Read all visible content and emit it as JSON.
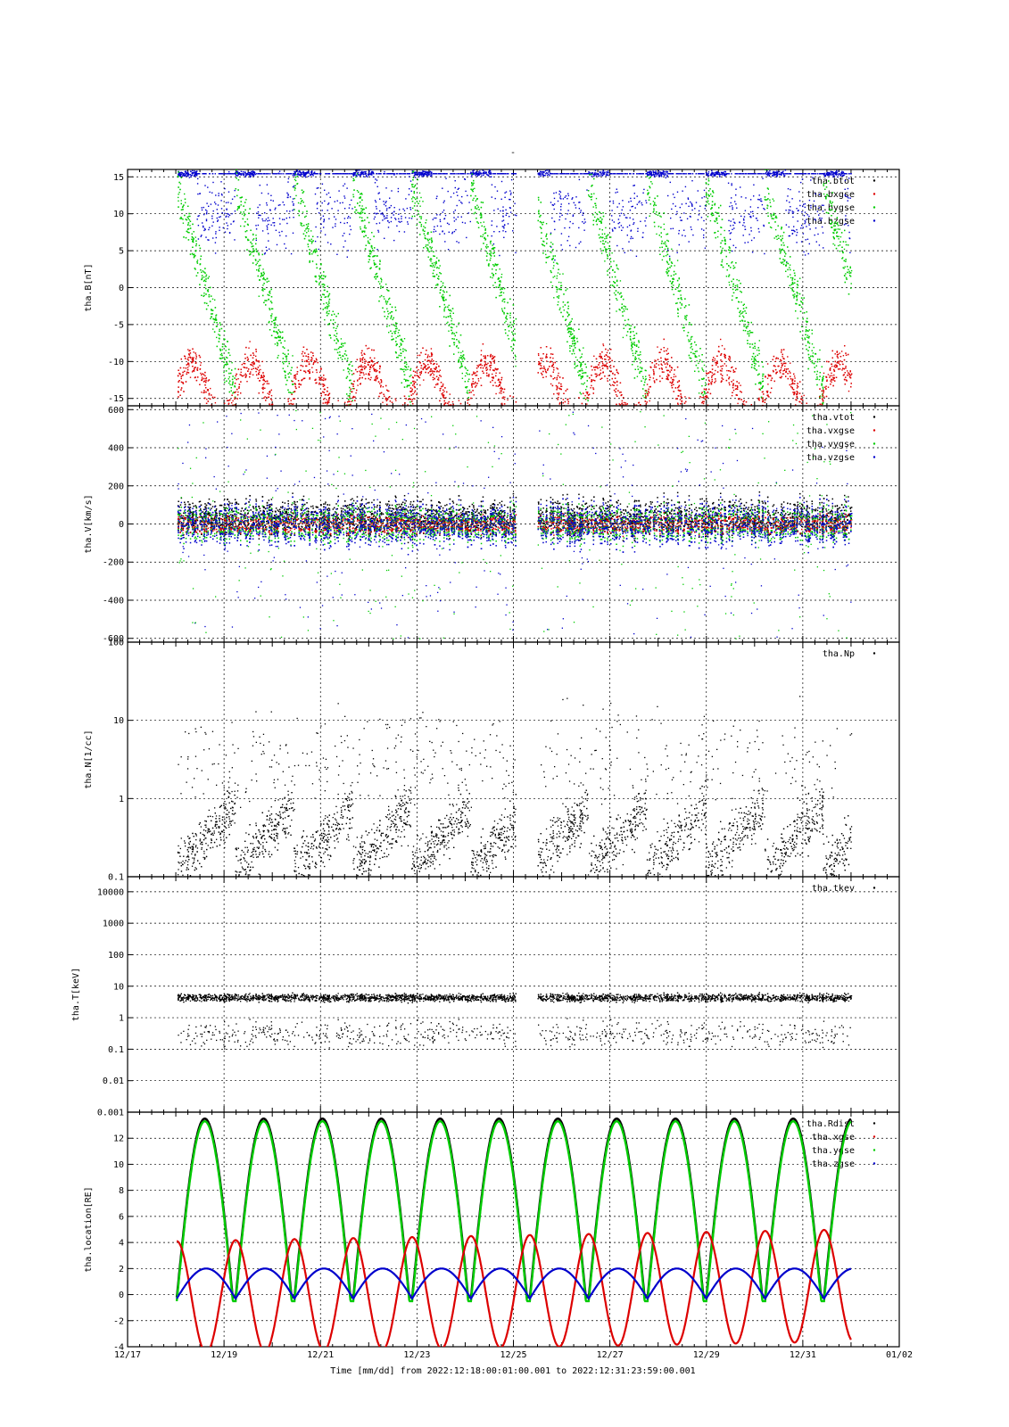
{
  "page": {
    "dash_title": "-",
    "xlabel": "Time [mm/dd]  from 2022:12:18:00:01:00.001  to  2022:12:31:23:59:00.001",
    "x_ticks": [
      "12/17",
      "12/19",
      "12/21",
      "12/23",
      "12/25",
      "12/27",
      "12/29",
      "12/31",
      "01/02"
    ]
  },
  "colors": {
    "black": "#000000",
    "red": "#dd0000",
    "green": "#00cc00",
    "blue": "#0000cc"
  },
  "chart_data": [
    {
      "type": "scatter",
      "ylabel": "tha.B[nT]",
      "ylim": [
        -16,
        16
      ],
      "yticks": [
        15,
        10,
        5,
        0,
        -5,
        -10,
        -15
      ],
      "ytick_labels": [
        "15",
        "10",
        "5",
        "0",
        "-5",
        "-10",
        "-15"
      ],
      "legend_placement": "top-right",
      "series": [
        {
          "name": "tha.btot",
          "color": "black"
        },
        {
          "name": "tha.bxgse",
          "color": "red"
        },
        {
          "name": "tha.bygse",
          "color": "green"
        },
        {
          "name": "tha.bzgse",
          "color": "blue"
        }
      ]
    },
    {
      "type": "scatter",
      "ylabel": "tha.V[km/s]",
      "ylim": [
        -620,
        620
      ],
      "yticks": [
        600,
        400,
        200,
        0,
        -200,
        -400,
        -600
      ],
      "ytick_labels": [
        "600",
        "400",
        "200",
        "0",
        "-200",
        "-400",
        "-600"
      ],
      "legend_placement": "top-right",
      "series": [
        {
          "name": "tha.vtot",
          "color": "black"
        },
        {
          "name": "tha.vxgse",
          "color": "red"
        },
        {
          "name": "tha.vygse",
          "color": "green"
        },
        {
          "name": "tha.vzgse",
          "color": "blue"
        }
      ]
    },
    {
      "type": "scatter",
      "ylabel": "tha.N[1/cc]",
      "yscale": "log",
      "ylim": [
        0.1,
        100
      ],
      "yticks": [
        100,
        10,
        1,
        0.1
      ],
      "ytick_labels": [
        "100",
        "10",
        "1",
        "0.1"
      ],
      "legend_placement": "top-right",
      "series": [
        {
          "name": "tha.Np",
          "color": "black"
        }
      ]
    },
    {
      "type": "scatter",
      "ylabel": "tha.T[keV]",
      "yscale": "log",
      "ylim": [
        0.001,
        30000
      ],
      "yticks": [
        10000,
        1000,
        100,
        10,
        1,
        0.1,
        0.01,
        0.001
      ],
      "ytick_labels": [
        "10000",
        "1000",
        "100",
        "10",
        "1",
        "0.1",
        "0.01",
        "0.001"
      ],
      "legend_placement": "top-right",
      "series": [
        {
          "name": "tha.tkev",
          "color": "black"
        }
      ]
    },
    {
      "type": "line",
      "ylabel": "tha.location[RE]",
      "ylim": [
        -4,
        14
      ],
      "yticks": [
        12,
        10,
        8,
        6,
        4,
        2,
        0,
        -2,
        -4
      ],
      "ytick_labels": [
        "12",
        "10",
        "8",
        "6",
        "4",
        "2",
        "0",
        "-2",
        "-4"
      ],
      "legend_placement": "top-right",
      "series": [
        {
          "name": "tha.Rdist",
          "color": "black"
        },
        {
          "name": "tha.xgse",
          "color": "red"
        },
        {
          "name": "tha.ygse",
          "color": "green"
        },
        {
          "name": "tha.zgse",
          "color": "blue"
        }
      ]
    }
  ]
}
